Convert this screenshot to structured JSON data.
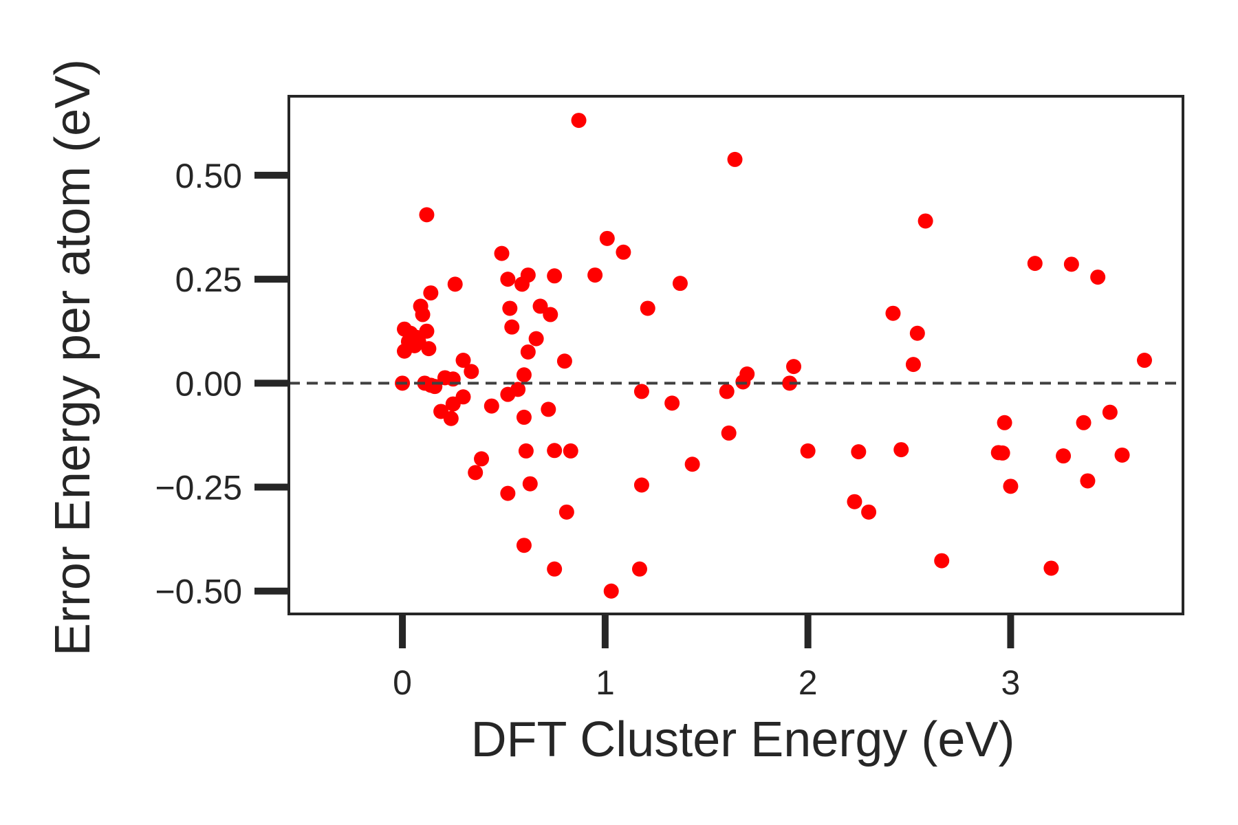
{
  "chart_data": {
    "type": "scatter",
    "xlabel": "DFT Cluster Energy (eV)",
    "ylabel": "Error Energy per atom (eV)",
    "xlim": [
      -0.56,
      3.85
    ],
    "ylim": [
      -0.555,
      0.69
    ],
    "xticks": [
      0,
      1,
      2,
      3
    ],
    "xtick_labels": [
      "0",
      "1",
      "2",
      "3"
    ],
    "yticks": [
      -0.5,
      -0.25,
      0.0,
      0.25,
      0.5
    ],
    "ytick_labels": [
      "−0.50",
      "−0.25",
      "0.00",
      "0.25",
      "0.50"
    ],
    "reference_line": {
      "y": 0.0,
      "style": "dashed",
      "color": "#404040"
    },
    "marker_color": "#ff0000",
    "grid": false,
    "points": [
      {
        "x": 0.0,
        "y": 0.0
      },
      {
        "x": 0.01,
        "y": 0.077
      },
      {
        "x": 0.01,
        "y": 0.13
      },
      {
        "x": 0.03,
        "y": 0.1
      },
      {
        "x": 0.04,
        "y": 0.12
      },
      {
        "x": 0.06,
        "y": 0.09
      },
      {
        "x": 0.07,
        "y": 0.11
      },
      {
        "x": 0.08,
        "y": 0.1
      },
      {
        "x": 0.09,
        "y": 0.185
      },
      {
        "x": 0.1,
        "y": 0.165
      },
      {
        "x": 0.11,
        "y": 0.0
      },
      {
        "x": 0.12,
        "y": 0.405
      },
      {
        "x": 0.12,
        "y": 0.125
      },
      {
        "x": 0.13,
        "y": 0.083
      },
      {
        "x": 0.14,
        "y": 0.217
      },
      {
        "x": 0.14,
        "y": -0.005
      },
      {
        "x": 0.16,
        "y": -0.008
      },
      {
        "x": 0.19,
        "y": -0.068
      },
      {
        "x": 0.21,
        "y": 0.013
      },
      {
        "x": 0.24,
        "y": -0.085
      },
      {
        "x": 0.25,
        "y": 0.01
      },
      {
        "x": 0.25,
        "y": -0.05
      },
      {
        "x": 0.26,
        "y": 0.238
      },
      {
        "x": 0.3,
        "y": 0.055
      },
      {
        "x": 0.3,
        "y": -0.033
      },
      {
        "x": 0.34,
        "y": 0.028
      },
      {
        "x": 0.36,
        "y": -0.215
      },
      {
        "x": 0.39,
        "y": -0.182
      },
      {
        "x": 0.44,
        "y": -0.055
      },
      {
        "x": 0.49,
        "y": 0.312
      },
      {
        "x": 0.52,
        "y": 0.25
      },
      {
        "x": 0.52,
        "y": -0.027
      },
      {
        "x": 0.52,
        "y": -0.265
      },
      {
        "x": 0.53,
        "y": 0.18
      },
      {
        "x": 0.54,
        "y": 0.135
      },
      {
        "x": 0.57,
        "y": -0.015
      },
      {
        "x": 0.59,
        "y": 0.238
      },
      {
        "x": 0.6,
        "y": 0.02
      },
      {
        "x": 0.6,
        "y": -0.082
      },
      {
        "x": 0.6,
        "y": -0.39
      },
      {
        "x": 0.61,
        "y": -0.163
      },
      {
        "x": 0.62,
        "y": 0.26
      },
      {
        "x": 0.62,
        "y": 0.075
      },
      {
        "x": 0.63,
        "y": -0.242
      },
      {
        "x": 0.66,
        "y": 0.107
      },
      {
        "x": 0.68,
        "y": 0.185
      },
      {
        "x": 0.72,
        "y": -0.063
      },
      {
        "x": 0.73,
        "y": 0.165
      },
      {
        "x": 0.75,
        "y": 0.258
      },
      {
        "x": 0.75,
        "y": -0.162
      },
      {
        "x": 0.75,
        "y": -0.447
      },
      {
        "x": 0.8,
        "y": 0.053
      },
      {
        "x": 0.81,
        "y": -0.31
      },
      {
        "x": 0.83,
        "y": -0.163
      },
      {
        "x": 0.87,
        "y": 0.632
      },
      {
        "x": 0.95,
        "y": 0.26
      },
      {
        "x": 1.01,
        "y": 0.348
      },
      {
        "x": 1.03,
        "y": -0.5
      },
      {
        "x": 1.09,
        "y": 0.315
      },
      {
        "x": 1.17,
        "y": -0.447
      },
      {
        "x": 1.18,
        "y": -0.02
      },
      {
        "x": 1.18,
        "y": -0.245
      },
      {
        "x": 1.21,
        "y": 0.18
      },
      {
        "x": 1.33,
        "y": -0.048
      },
      {
        "x": 1.37,
        "y": 0.24
      },
      {
        "x": 1.43,
        "y": -0.195
      },
      {
        "x": 1.6,
        "y": -0.02
      },
      {
        "x": 1.61,
        "y": -0.12
      },
      {
        "x": 1.64,
        "y": 0.538
      },
      {
        "x": 1.68,
        "y": 0.003
      },
      {
        "x": 1.7,
        "y": 0.022
      },
      {
        "x": 1.91,
        "y": 0.0
      },
      {
        "x": 1.93,
        "y": 0.04
      },
      {
        "x": 2.0,
        "y": -0.163
      },
      {
        "x": 2.23,
        "y": -0.285
      },
      {
        "x": 2.25,
        "y": -0.165
      },
      {
        "x": 2.3,
        "y": -0.31
      },
      {
        "x": 2.42,
        "y": 0.168
      },
      {
        "x": 2.46,
        "y": -0.16
      },
      {
        "x": 2.52,
        "y": 0.045
      },
      {
        "x": 2.54,
        "y": 0.12
      },
      {
        "x": 2.58,
        "y": 0.39
      },
      {
        "x": 2.66,
        "y": -0.427
      },
      {
        "x": 2.94,
        "y": -0.167
      },
      {
        "x": 2.96,
        "y": -0.168
      },
      {
        "x": 2.97,
        "y": -0.095
      },
      {
        "x": 3.0,
        "y": -0.248
      },
      {
        "x": 3.12,
        "y": 0.288
      },
      {
        "x": 3.2,
        "y": -0.445
      },
      {
        "x": 3.26,
        "y": -0.175
      },
      {
        "x": 3.3,
        "y": 0.286
      },
      {
        "x": 3.36,
        "y": -0.095
      },
      {
        "x": 3.38,
        "y": -0.235
      },
      {
        "x": 3.43,
        "y": 0.255
      },
      {
        "x": 3.49,
        "y": -0.07
      },
      {
        "x": 3.55,
        "y": -0.173
      },
      {
        "x": 3.66,
        "y": 0.055
      }
    ]
  }
}
